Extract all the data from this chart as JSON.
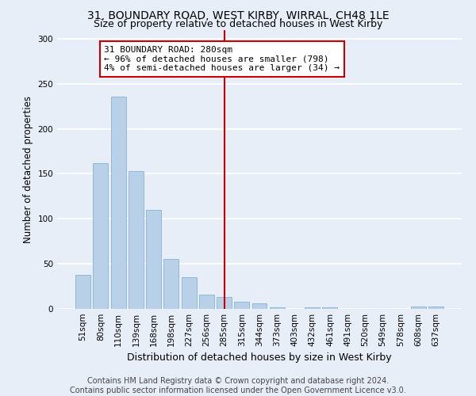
{
  "title": "31, BOUNDARY ROAD, WEST KIRBY, WIRRAL, CH48 1LE",
  "subtitle": "Size of property relative to detached houses in West Kirby",
  "xlabel": "Distribution of detached houses by size in West Kirby",
  "ylabel": "Number of detached properties",
  "categories": [
    "51sqm",
    "80sqm",
    "110sqm",
    "139sqm",
    "168sqm",
    "198sqm",
    "227sqm",
    "256sqm",
    "285sqm",
    "315sqm",
    "344sqm",
    "373sqm",
    "403sqm",
    "432sqm",
    "461sqm",
    "491sqm",
    "520sqm",
    "549sqm",
    "578sqm",
    "608sqm",
    "637sqm"
  ],
  "values": [
    38,
    162,
    236,
    153,
    110,
    55,
    35,
    16,
    13,
    8,
    6,
    2,
    0,
    2,
    2,
    0,
    0,
    0,
    0,
    3,
    3
  ],
  "bar_color": "#b8d0e8",
  "bar_edge_color": "#7aaad0",
  "vline_x_index": 8,
  "vline_color": "#cc0000",
  "annotation_line1": "31 BOUNDARY ROAD: 280sqm",
  "annotation_line2": "← 96% of detached houses are smaller (798)",
  "annotation_line3": "4% of semi-detached houses are larger (34) →",
  "annotation_box_color": "#ffffff",
  "annotation_box_edge_color": "#cc0000",
  "ylim": [
    0,
    310
  ],
  "yticks": [
    0,
    50,
    100,
    150,
    200,
    250,
    300
  ],
  "background_color": "#e8eef8",
  "grid_color": "#ffffff",
  "footer_line1": "Contains HM Land Registry data © Crown copyright and database right 2024.",
  "footer_line2": "Contains public sector information licensed under the Open Government Licence v3.0.",
  "title_fontsize": 10,
  "subtitle_fontsize": 9,
  "xlabel_fontsize": 9,
  "ylabel_fontsize": 8.5,
  "tick_fontsize": 7.5,
  "annotation_fontsize": 8,
  "footer_fontsize": 7
}
